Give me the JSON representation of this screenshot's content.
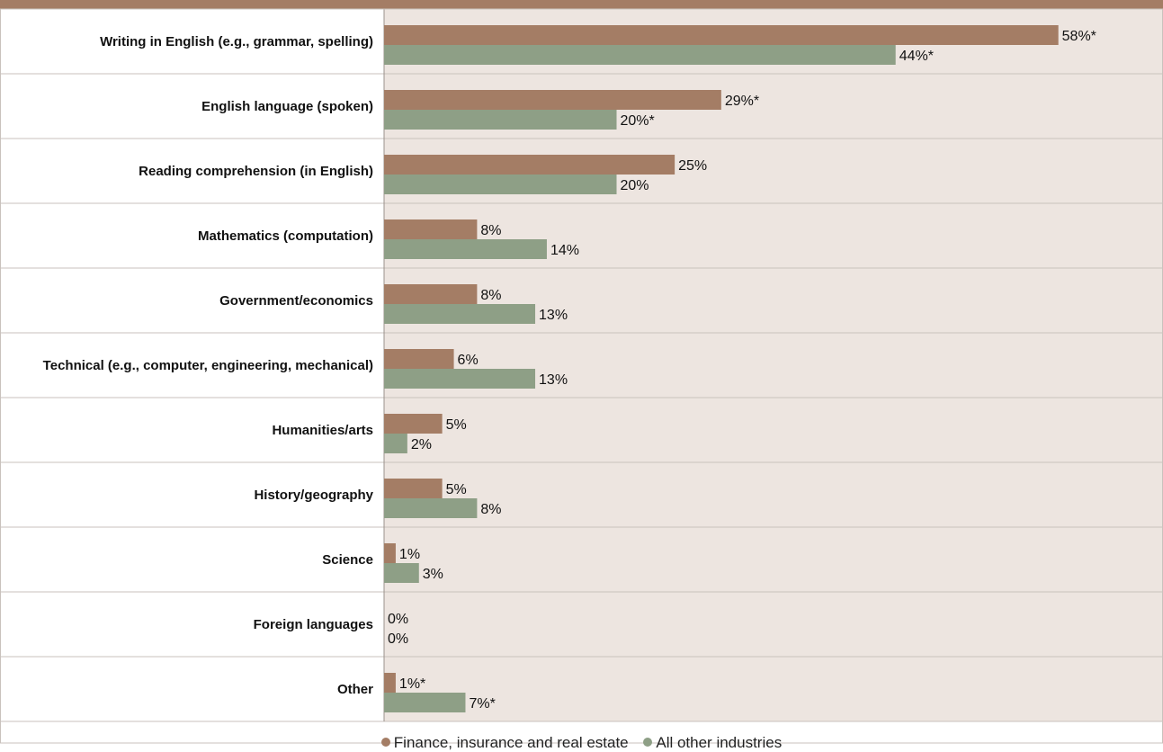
{
  "colors": {
    "header_bar": "#a47d65",
    "plot_background": "#ede5e0",
    "series_finance": "#a47d65",
    "series_other": "#8e9f86",
    "gridline": "#c9c2bd"
  },
  "legend": {
    "finance_label": "Finance, insurance and real estate",
    "other_label": "All other industries"
  },
  "chart_data": {
    "type": "bar",
    "orientation": "horizontal",
    "categories": [
      "Writing in English (e.g., grammar, spelling)",
      "English language (spoken)",
      "Reading comprehension (in English)",
      "Mathematics (computation)",
      "Government/economics",
      "Technical (e.g., computer, engineering, mechanical)",
      "Humanities/arts",
      "History/geography",
      "Science",
      "Foreign languages",
      "Other"
    ],
    "series": [
      {
        "name": "Finance, insurance and real estate",
        "values": [
          58,
          29,
          25,
          8,
          8,
          6,
          5,
          5,
          1,
          0,
          1
        ],
        "labels": [
          "58%*",
          "29%*",
          "25%",
          "8%",
          "8%",
          "6%",
          "5%",
          "5%",
          "1%",
          "0%",
          "1%*"
        ]
      },
      {
        "name": "All other industries",
        "values": [
          44,
          20,
          20,
          14,
          13,
          13,
          2,
          8,
          3,
          0,
          7
        ],
        "labels": [
          "44%*",
          "20%*",
          "20%",
          "14%",
          "13%",
          "13%",
          "2%",
          "8%",
          "3%",
          "0%",
          "7%*"
        ]
      }
    ],
    "xlim": [
      0,
      67
    ],
    "legend_position": "bottom-center",
    "grid": "horizontal row separators"
  }
}
